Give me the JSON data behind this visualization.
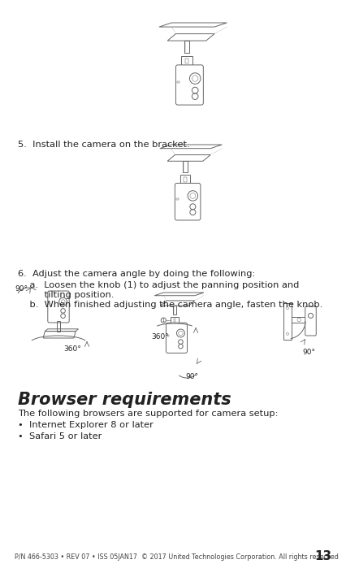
{
  "bg_color": "#ffffff",
  "body_fontsize": 8.2,
  "step5_text": "5.  Install the camera on the bracket.",
  "step6_text": "6.  Adjust the camera angle by doing the following:",
  "step6a_line1": "    a.  Loosen the knob (1) to adjust the panning position and",
  "step6a_line2": "         tilting position.",
  "step6b_text": "    b.  When finished adjusting the camera angle, fasten the knob.",
  "browser_title": "Browser requirements",
  "browser_intro": "The following browsers are supported for camera setup:",
  "browser_item1": "Internet Explorer 8 or later",
  "browser_item2": "Safari 5 or later",
  "footer_text": "P/N 466-5303 • REV 07 • ISS 05JAN17  © 2017 United Technologies Corporation. All rights reserved",
  "page_number": "13",
  "label_360": "360°",
  "label_90": "90°",
  "text_color": "#222222",
  "footer_color": "#444444",
  "diagram_color": "#666666",
  "diagram_lw": 0.7
}
